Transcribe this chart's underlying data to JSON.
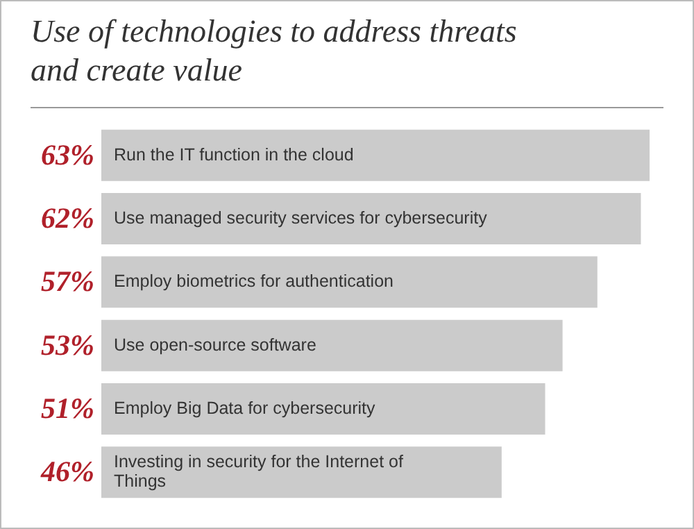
{
  "chart_data": {
    "type": "bar",
    "orientation": "horizontal",
    "title": "Use of technologies to address threats and create value",
    "categories": [
      "Run the IT function in the cloud",
      "Use managed security services for cybersecurity",
      "Employ biometrics for authentication",
      "Use open-source software",
      "Employ Big Data for cybersecurity",
      "Investing in security for the Internet of Things"
    ],
    "values": [
      63,
      62,
      57,
      53,
      51,
      46
    ],
    "value_labels": [
      "63%",
      "62%",
      "57%",
      "53%",
      "51%",
      "46%"
    ],
    "color": "#cbcbcb"
  }
}
